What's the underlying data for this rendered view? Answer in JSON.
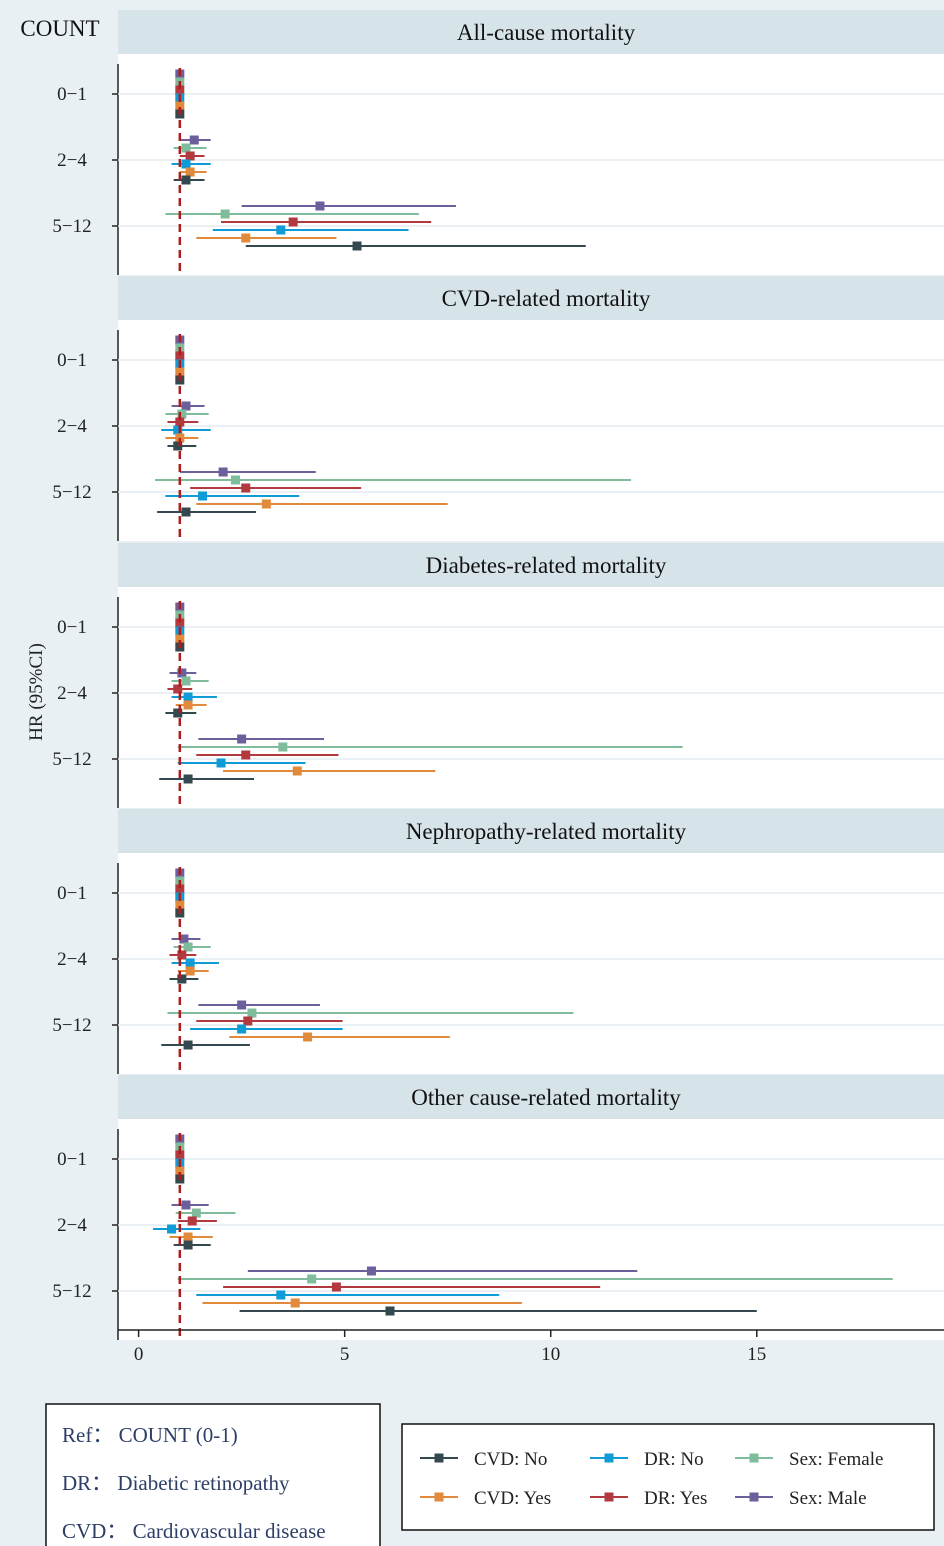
{
  "chart_data": {
    "type": "forest",
    "corner_label": "COUNT",
    "ylabel": "HR (95%CI)",
    "xlabel": "",
    "xlim": [
      -0.5,
      19.3
    ],
    "xticks": [
      0,
      5,
      10,
      15
    ],
    "reference_line": 1,
    "categories": [
      "0−1",
      "2−4",
      "5−12"
    ],
    "series_order": [
      "Sex: Male",
      "Sex: Female",
      "DR: Yes",
      "DR: No",
      "CVD: Yes",
      "CVD: No"
    ],
    "series_colors": {
      "CVD: No": "#34484f",
      "CVD: Yes": "#e28a3b",
      "DR: No": "#0e9bd6",
      "DR: Yes": "#b23a3f",
      "Sex: Female": "#7fbc9c",
      "Sex: Male": "#6d5f9c"
    },
    "panels": [
      {
        "title": "All-cause mortality",
        "groups": [
          {
            "category": "0−1",
            "rows": [
              [
                1,
                1,
                1
              ],
              [
                1,
                1,
                1
              ],
              [
                1,
                1,
                1
              ],
              [
                1,
                1,
                1
              ],
              [
                1,
                1,
                1
              ],
              [
                1,
                1,
                1
              ]
            ]
          },
          {
            "category": "2−4",
            "rows": [
              [
                1.35,
                1.0,
                1.75
              ],
              [
                1.15,
                0.85,
                1.65
              ],
              [
                1.25,
                1.0,
                1.6
              ],
              [
                1.15,
                0.8,
                1.75
              ],
              [
                1.25,
                1.0,
                1.65
              ],
              [
                1.15,
                0.85,
                1.6
              ]
            ]
          },
          {
            "category": "5−12",
            "rows": [
              [
                4.4,
                2.5,
                7.7
              ],
              [
                2.1,
                0.65,
                6.8
              ],
              [
                3.75,
                2.0,
                7.1
              ],
              [
                3.45,
                1.8,
                6.55
              ],
              [
                2.6,
                1.4,
                4.8
              ],
              [
                5.3,
                2.6,
                10.85
              ]
            ]
          }
        ]
      },
      {
        "title": "CVD-related mortality",
        "groups": [
          {
            "category": "0−1",
            "rows": [
              [
                1,
                1,
                1
              ],
              [
                1,
                1,
                1
              ],
              [
                1,
                1,
                1
              ],
              [
                1,
                1,
                1
              ],
              [
                1,
                1,
                1
              ],
              [
                1,
                1,
                1
              ]
            ]
          },
          {
            "category": "2−4",
            "rows": [
              [
                1.15,
                0.8,
                1.6
              ],
              [
                1.05,
                0.65,
                1.7
              ],
              [
                1.0,
                0.7,
                1.45
              ],
              [
                0.95,
                0.55,
                1.75
              ],
              [
                1.0,
                0.65,
                1.45
              ],
              [
                0.95,
                0.7,
                1.4
              ]
            ]
          },
          {
            "category": "5−12",
            "rows": [
              [
                2.05,
                1.0,
                4.3
              ],
              [
                2.35,
                0.4,
                11.95
              ],
              [
                2.6,
                1.25,
                5.4
              ],
              [
                1.55,
                0.65,
                3.9
              ],
              [
                3.1,
                1.4,
                7.5
              ],
              [
                1.15,
                0.45,
                2.85
              ]
            ]
          }
        ]
      },
      {
        "title": "Diabetes-related mortality",
        "groups": [
          {
            "category": "0−1",
            "rows": [
              [
                1,
                1,
                1
              ],
              [
                1,
                1,
                1
              ],
              [
                1,
                1,
                1
              ],
              [
                1,
                1,
                1
              ],
              [
                1,
                1,
                1
              ],
              [
                1,
                1,
                1
              ]
            ]
          },
          {
            "category": "2−4",
            "rows": [
              [
                1.05,
                0.75,
                1.4
              ],
              [
                1.15,
                0.8,
                1.7
              ],
              [
                0.95,
                0.7,
                1.3
              ],
              [
                1.2,
                0.8,
                1.9
              ],
              [
                1.2,
                0.9,
                1.65
              ],
              [
                0.95,
                0.65,
                1.4
              ]
            ]
          },
          {
            "category": "5−12",
            "rows": [
              [
                2.5,
                1.45,
                4.5
              ],
              [
                3.5,
                0.95,
                13.2
              ],
              [
                2.6,
                1.4,
                4.85
              ],
              [
                2.0,
                0.95,
                4.05
              ],
              [
                3.85,
                2.05,
                7.2
              ],
              [
                1.2,
                0.5,
                2.8
              ]
            ]
          }
        ]
      },
      {
        "title": "Nephropathy-related mortality",
        "groups": [
          {
            "category": "0−1",
            "rows": [
              [
                1,
                1,
                1
              ],
              [
                1,
                1,
                1
              ],
              [
                1,
                1,
                1
              ],
              [
                1,
                1,
                1
              ],
              [
                1,
                1,
                1
              ],
              [
                1,
                1,
                1
              ]
            ]
          },
          {
            "category": "2−4",
            "rows": [
              [
                1.1,
                0.8,
                1.5
              ],
              [
                1.2,
                0.85,
                1.75
              ],
              [
                1.05,
                0.75,
                1.4
              ],
              [
                1.25,
                0.8,
                1.95
              ],
              [
                1.25,
                0.95,
                1.7
              ],
              [
                1.05,
                0.75,
                1.45
              ]
            ]
          },
          {
            "category": "5−12",
            "rows": [
              [
                2.5,
                1.45,
                4.4
              ],
              [
                2.75,
                0.7,
                10.55
              ],
              [
                2.65,
                1.4,
                4.95
              ],
              [
                2.5,
                1.25,
                4.95
              ],
              [
                4.1,
                2.2,
                7.55
              ],
              [
                1.2,
                0.55,
                2.7
              ]
            ]
          }
        ]
      },
      {
        "title": "Other cause-related mortality",
        "groups": [
          {
            "category": "0−1",
            "rows": [
              [
                1,
                1,
                1
              ],
              [
                1,
                1,
                1
              ],
              [
                1,
                1,
                1
              ],
              [
                1,
                1,
                1
              ],
              [
                1,
                1,
                1
              ],
              [
                1,
                1,
                1
              ]
            ]
          },
          {
            "category": "2−4",
            "rows": [
              [
                1.15,
                0.8,
                1.7
              ],
              [
                1.4,
                0.9,
                2.35
              ],
              [
                1.3,
                0.95,
                1.9
              ],
              [
                0.8,
                0.35,
                1.5
              ],
              [
                1.2,
                0.75,
                1.8
              ],
              [
                1.2,
                0.85,
                1.75
              ]
            ]
          },
          {
            "category": "5−12",
            "rows": [
              [
                5.65,
                2.65,
                12.1
              ],
              [
                4.2,
                0.95,
                18.3
              ],
              [
                4.8,
                2.05,
                11.2
              ],
              [
                3.45,
                1.4,
                8.75
              ],
              [
                3.8,
                1.55,
                9.3
              ],
              [
                6.1,
                2.45,
                15.0
              ]
            ]
          }
        ]
      }
    ],
    "legend": {
      "placement": "bottom-right",
      "items": [
        "CVD: No",
        "DR: No",
        "Sex: Female",
        "CVD: Yes",
        "DR: Yes",
        "Sex: Male"
      ]
    },
    "notes": [
      "Ref： COUNT (0-1)",
      "DR： Diabetic retinopathy",
      "CVD： Cardiovascular disease"
    ]
  }
}
